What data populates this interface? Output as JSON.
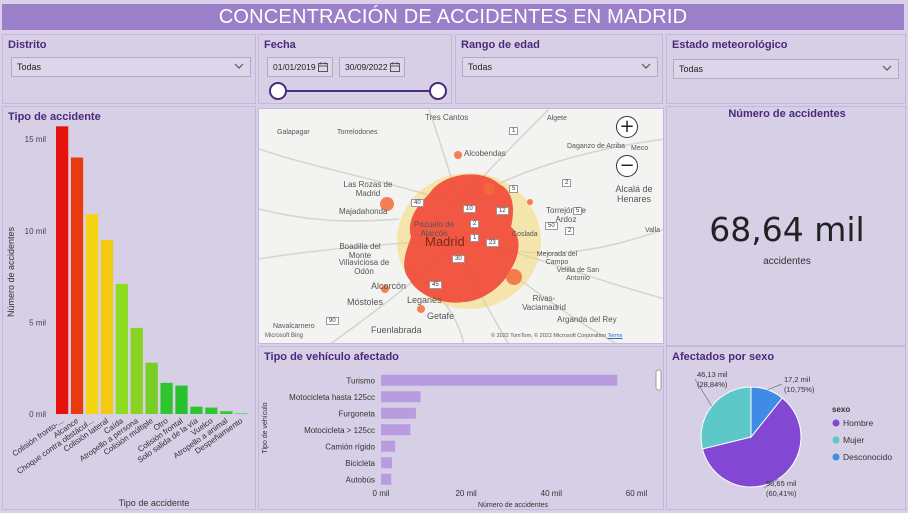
{
  "header": {
    "title": "CONCENTRACIÓN DE ACCIDENTES EN MADRID"
  },
  "filters": {
    "distrito": {
      "label": "Distrito",
      "value": "Todas"
    },
    "fecha": {
      "label": "Fecha",
      "start": "01/01/2019",
      "end": "30/09/2022"
    },
    "edad": {
      "label": "Rango de edad",
      "value": "Todas"
    },
    "meteo": {
      "label": "Estado meteorológico",
      "value": "Todas"
    }
  },
  "kpi": {
    "title": "Número de accidentes",
    "value": "68,64 mil",
    "subtitle": "accidentes"
  },
  "map": {
    "zoom_in": "+",
    "zoom_out": "−",
    "attribution": "© 2022 TomTom, © 2022 Microsoft Corporation",
    "terms": "Terms",
    "provider": "Microsoft Bing",
    "places": [
      {
        "name": "Tres Cantos",
        "size": 8
      },
      {
        "name": "Algete",
        "size": 7
      },
      {
        "name": "Galapagar",
        "size": 7
      },
      {
        "name": "Torrelodones",
        "size": 7
      },
      {
        "name": "Alcobendas",
        "size": 8
      },
      {
        "name": "Daganzo de Arriba",
        "size": 7
      },
      {
        "name": "Meco",
        "size": 7
      },
      {
        "name": "Las Rozas de Madrid",
        "size": 8
      },
      {
        "name": "Alcalá de Henares",
        "size": 9
      },
      {
        "name": "Majadahonda",
        "size": 8
      },
      {
        "name": "Pozuelo de Alarcón",
        "size": 8
      },
      {
        "name": "Torrejón de Ardoz",
        "size": 8
      },
      {
        "name": "Madrid",
        "size": 13
      },
      {
        "name": "Coslada",
        "size": 7
      },
      {
        "name": "Boadilla del Monte",
        "size": 8
      },
      {
        "name": "Mejorada del Campo",
        "size": 7
      },
      {
        "name": "Villaviciosa de Odón",
        "size": 8
      },
      {
        "name": "Velilla de San Antonio",
        "size": 7
      },
      {
        "name": "Alcorcón",
        "size": 9
      },
      {
        "name": "Leganés",
        "size": 9
      },
      {
        "name": "Móstoles",
        "size": 9
      },
      {
        "name": "Rivas-Vaciamadrid",
        "size": 8
      },
      {
        "name": "Getafe",
        "size": 9
      },
      {
        "name": "Navalcarnero",
        "size": 7
      },
      {
        "name": "Fuenlabrada",
        "size": 9
      },
      {
        "name": "Arganda del Rey",
        "size": 8
      },
      {
        "name": "Valla",
        "size": 7
      }
    ],
    "road_badges": [
      "1",
      "2",
      "2",
      "5",
      "40",
      "10",
      "12",
      "2",
      "1",
      "23",
      "50",
      "30",
      "45",
      "90",
      "5"
    ]
  },
  "chart_data": [
    {
      "type": "bar",
      "title": "Tipo de accidente",
      "xlabel": "Tipo de accidente",
      "ylabel": "Número de accidentes",
      "ylim": [
        0,
        15500
      ],
      "yticks": [
        "0 mil",
        "5 mil",
        "10 mil",
        "15 mil"
      ],
      "ytick_values": [
        0,
        5000,
        10000,
        15000
      ],
      "categories": [
        "Colisión fronto-...",
        "Alcance",
        "Choque contra obstácul...",
        "Colisión lateral",
        "Caída",
        "Atropello a persona",
        "Colisión múltiple",
        "Otro",
        "Colisión frontal",
        "Solo salida de la vía",
        "Vuelco",
        "Atropello a animal",
        "Despeñamiento"
      ],
      "values": [
        15700,
        14000,
        10900,
        9500,
        7100,
        4700,
        2800,
        1700,
        1550,
        400,
        350,
        150,
        30
      ],
      "colors": [
        "#e8120c",
        "#ea3b0c",
        "#f5d50f",
        "#f5c90f",
        "#8ddc1f",
        "#88d420",
        "#77cf22",
        "#2fc430",
        "#29c02f",
        "#2bc52c",
        "#2cc82d",
        "#2dca2e",
        "#2dca2e"
      ],
      "grid": false
    },
    {
      "type": "bar",
      "orientation": "horizontal",
      "title": "Tipo de vehículo afectado",
      "xlabel": "Número de accidentes",
      "ylabel": "Tipo de vehículo",
      "xlim": [
        0,
        62000
      ],
      "xticks": [
        "0 mil",
        "20 mil",
        "40 mil",
        "60 mil"
      ],
      "xtick_values": [
        0,
        20000,
        40000,
        60000
      ],
      "categories": [
        "Turismo",
        "Motocicleta hasta 125cc",
        "Furgoneta",
        "Motocicleta > 125cc",
        "Camión rígido",
        "Bicicleta",
        "Autobús"
      ],
      "values": [
        55500,
        9300,
        8200,
        6900,
        3300,
        2600,
        2400
      ],
      "color": "#b99be0"
    },
    {
      "type": "pie",
      "title": "Afectados por sexo",
      "legend_title": "sexo",
      "legend_position": "right",
      "slices": [
        {
          "label": "Hombre",
          "value": 96.65,
          "display": "96,65 mil",
          "pct": "(60,41%)",
          "color": "#8348d3"
        },
        {
          "label": "Mujer",
          "value": 46.13,
          "display": "46,13 mil",
          "pct": "(28,84%)",
          "color": "#5cc8c8"
        },
        {
          "label": "Desconocido",
          "value": 17.2,
          "display": "17,2 mil",
          "pct": "(10,75%)",
          "color": "#3f8be6"
        }
      ]
    }
  ]
}
